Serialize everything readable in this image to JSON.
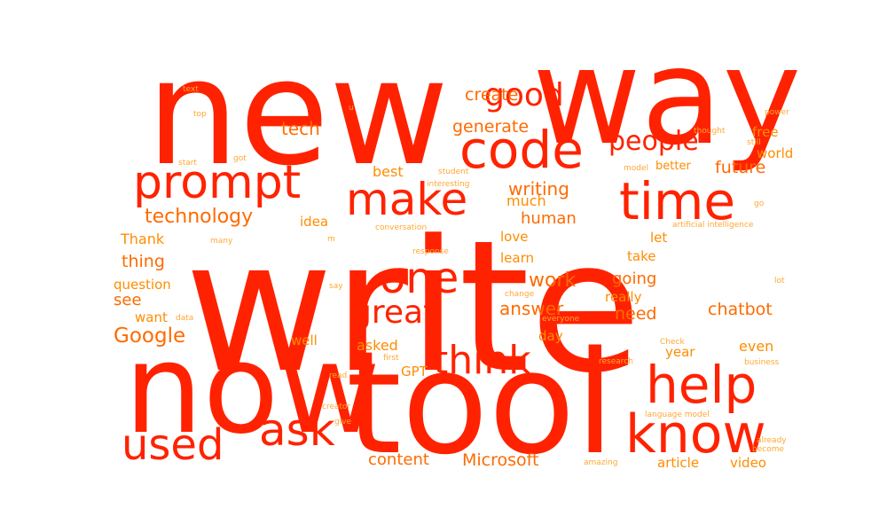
{
  "colors": {
    "background": "#ffffff",
    "primary": "#ff2200",
    "secondary": "#ff6a00",
    "tertiary": "#ff8c00",
    "light": "#ffa733"
  },
  "words": [
    {
      "text": "write",
      "weight": 1.0,
      "tone": "primary"
    },
    {
      "text": "new",
      "weight": 0.8,
      "tone": "primary"
    },
    {
      "text": "way",
      "weight": 0.65,
      "tone": "primary"
    },
    {
      "text": "now",
      "weight": 0.6,
      "tone": "primary"
    },
    {
      "text": "tool",
      "weight": 0.7,
      "tone": "primary"
    },
    {
      "text": "know",
      "weight": 0.38,
      "tone": "primary"
    },
    {
      "text": "help",
      "weight": 0.34,
      "tone": "primary"
    },
    {
      "text": "time",
      "weight": 0.32,
      "tone": "primary"
    },
    {
      "text": "code",
      "weight": 0.32,
      "tone": "primary"
    },
    {
      "text": "prompt",
      "weight": 0.3,
      "tone": "primary"
    },
    {
      "text": "make",
      "weight": 0.28,
      "tone": "primary"
    },
    {
      "text": "ask",
      "weight": 0.28,
      "tone": "primary"
    },
    {
      "text": "used",
      "weight": 0.28,
      "tone": "primary"
    },
    {
      "text": "one",
      "weight": 0.26,
      "tone": "primary"
    },
    {
      "text": "think",
      "weight": 0.24,
      "tone": "primary"
    },
    {
      "text": "great",
      "weight": 0.2,
      "tone": "primary"
    },
    {
      "text": "good",
      "weight": 0.2,
      "tone": "primary"
    },
    {
      "text": "people",
      "weight": 0.17,
      "tone": "primary"
    },
    {
      "text": "Google",
      "weight": 0.11,
      "tone": "secondary"
    },
    {
      "text": "technology",
      "weight": 0.11,
      "tone": "secondary"
    },
    {
      "text": "tech",
      "weight": 0.1,
      "tone": "secondary"
    },
    {
      "text": "work",
      "weight": 0.11,
      "tone": "secondary"
    },
    {
      "text": "answer",
      "weight": 0.1,
      "tone": "secondary"
    },
    {
      "text": "writing",
      "weight": 0.1,
      "tone": "secondary"
    },
    {
      "text": "create",
      "weight": 0.09,
      "tone": "secondary"
    },
    {
      "text": "generate",
      "weight": 0.09,
      "tone": "secondary"
    },
    {
      "text": "future",
      "weight": 0.09,
      "tone": "secondary"
    },
    {
      "text": "chatbot",
      "weight": 0.09,
      "tone": "secondary"
    },
    {
      "text": "Microsoft",
      "weight": 0.09,
      "tone": "secondary"
    },
    {
      "text": "content",
      "weight": 0.08,
      "tone": "secondary"
    },
    {
      "text": "need",
      "weight": 0.09,
      "tone": "secondary"
    },
    {
      "text": "human",
      "weight": 0.08,
      "tone": "secondary"
    },
    {
      "text": "going",
      "weight": 0.08,
      "tone": "secondary"
    },
    {
      "text": "thing",
      "weight": 0.08,
      "tone": "secondary"
    },
    {
      "text": "see",
      "weight": 0.08,
      "tone": "secondary"
    },
    {
      "text": "best",
      "weight": 0.07,
      "tone": "tertiary"
    },
    {
      "text": "much",
      "weight": 0.07,
      "tone": "tertiary"
    },
    {
      "text": "Thank",
      "weight": 0.07,
      "tone": "tertiary"
    },
    {
      "text": "idea",
      "weight": 0.06,
      "tone": "tertiary"
    },
    {
      "text": "love",
      "weight": 0.06,
      "tone": "tertiary"
    },
    {
      "text": "learn",
      "weight": 0.06,
      "tone": "tertiary"
    },
    {
      "text": "let",
      "weight": 0.06,
      "tone": "tertiary"
    },
    {
      "text": "take",
      "weight": 0.06,
      "tone": "tertiary"
    },
    {
      "text": "really",
      "weight": 0.06,
      "tone": "tertiary"
    },
    {
      "text": "asked",
      "weight": 0.07,
      "tone": "tertiary"
    },
    {
      "text": "question",
      "weight": 0.06,
      "tone": "tertiary"
    },
    {
      "text": "want",
      "weight": 0.06,
      "tone": "tertiary"
    },
    {
      "text": "well",
      "weight": 0.06,
      "tone": "tertiary"
    },
    {
      "text": "day",
      "weight": 0.06,
      "tone": "tertiary"
    },
    {
      "text": "year",
      "weight": 0.06,
      "tone": "tertiary"
    },
    {
      "text": "even",
      "weight": 0.07,
      "tone": "tertiary"
    },
    {
      "text": "GPT",
      "weight": 0.06,
      "tone": "tertiary"
    },
    {
      "text": "article",
      "weight": 0.06,
      "tone": "tertiary"
    },
    {
      "text": "video",
      "weight": 0.06,
      "tone": "tertiary"
    },
    {
      "text": "free",
      "weight": 0.06,
      "tone": "tertiary"
    },
    {
      "text": "world",
      "weight": 0.06,
      "tone": "tertiary"
    },
    {
      "text": "better",
      "weight": 0.05,
      "tone": "tertiary"
    },
    {
      "text": "text",
      "weight": 0.03,
      "tone": "light"
    },
    {
      "text": "top",
      "weight": 0.03,
      "tone": "light"
    },
    {
      "text": "u",
      "weight": 0.03,
      "tone": "light"
    },
    {
      "text": "got",
      "weight": 0.03,
      "tone": "light"
    },
    {
      "text": "start",
      "weight": 0.03,
      "tone": "light"
    },
    {
      "text": "student",
      "weight": 0.03,
      "tone": "light"
    },
    {
      "text": "interesting",
      "weight": 0.03,
      "tone": "light"
    },
    {
      "text": "conversation",
      "weight": 0.03,
      "tone": "light"
    },
    {
      "text": "many",
      "weight": 0.03,
      "tone": "light"
    },
    {
      "text": "m",
      "weight": 0.03,
      "tone": "light"
    },
    {
      "text": "response",
      "weight": 0.03,
      "tone": "light"
    },
    {
      "text": "data",
      "weight": 0.03,
      "tone": "light"
    },
    {
      "text": "say",
      "weight": 0.03,
      "tone": "light"
    },
    {
      "text": "change",
      "weight": 0.03,
      "tone": "light"
    },
    {
      "text": "everyone",
      "weight": 0.03,
      "tone": "light"
    },
    {
      "text": "first",
      "weight": 0.03,
      "tone": "light"
    },
    {
      "text": "read",
      "weight": 0.03,
      "tone": "light"
    },
    {
      "text": "creator",
      "weight": 0.03,
      "tone": "light"
    },
    {
      "text": "give",
      "weight": 0.03,
      "tone": "light"
    },
    {
      "text": "amazing",
      "weight": 0.03,
      "tone": "light"
    },
    {
      "text": "power",
      "weight": 0.03,
      "tone": "light"
    },
    {
      "text": "thought",
      "weight": 0.03,
      "tone": "light"
    },
    {
      "text": "still",
      "weight": 0.03,
      "tone": "light"
    },
    {
      "text": "model",
      "weight": 0.03,
      "tone": "light"
    },
    {
      "text": "go",
      "weight": 0.03,
      "tone": "light"
    },
    {
      "text": "artificial intelligence",
      "weight": 0.03,
      "tone": "light"
    },
    {
      "text": "lot",
      "weight": 0.03,
      "tone": "light"
    },
    {
      "text": "Check",
      "weight": 0.03,
      "tone": "light"
    },
    {
      "text": "research",
      "weight": 0.03,
      "tone": "light"
    },
    {
      "text": "business",
      "weight": 0.03,
      "tone": "light"
    },
    {
      "text": "language model",
      "weight": 0.03,
      "tone": "light"
    },
    {
      "text": "already",
      "weight": 0.03,
      "tone": "light"
    },
    {
      "text": "become",
      "weight": 0.03,
      "tone": "light"
    }
  ]
}
